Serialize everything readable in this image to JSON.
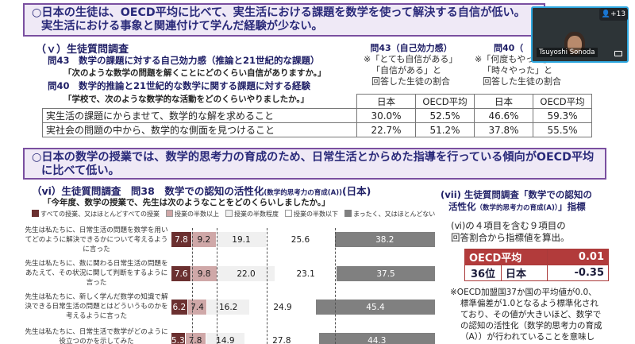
{
  "box1": {
    "line1": "○日本の生徒は、OECD平均に比べて、実生活における課題を数学を使って解決する自信が低い。",
    "line2": "実生活における事象と関連付けて学んだ経験が少ない。"
  },
  "section_v": {
    "heading": "（ｖ）生徒質問調査",
    "q43": "問43　数学の課題に対する自己効力感（推論と21世紀的な課題）",
    "q43_prompt": "「次のような数学の問題を解くことにどのくらい自信がありますか。」",
    "q40": "問40　数学的推論と21世紀的な数学に関する課題に対する経験",
    "q40_prompt": "「学校で、次のような数学的な活動をどのくらいやりましたか。」",
    "col43_title": "問43（自己効力感）",
    "col43_note1": "※「とても自信がある」",
    "col43_note2": "「自信がある」と",
    "col43_note3": "回答した生徒の割合",
    "col40_title": "問40（",
    "col40_note1": "※「何度もやった」",
    "col40_note2": "「時々やった」と",
    "col40_note3": "回答した生徒の割合",
    "hdr_japan": "日本",
    "hdr_oecd": "OECD平均",
    "rows": [
      {
        "item": "実生活の課題にからませて、数学的な解を求めること",
        "j43": "30.0%",
        "o43": "52.5%",
        "j40": "46.6%",
        "o40": "59.3%"
      },
      {
        "item": "実社会の問題の中から、数学的な側面を見つけること",
        "j43": "22.7%",
        "o43": "51.2%",
        "j40": "37.8%",
        "o40": "55.5%"
      }
    ]
  },
  "box2": {
    "line1": "○日本の数学の授業では、数学的思考力の育成のため、日常生活とからめた指導を行っている傾向がOECD平均",
    "line2": "に比べて低い。"
  },
  "section_vi": {
    "heading": "（vi）生徒質問調査　問38　数学での認知の活性化",
    "heading_small": "(数学的思考力の育成(A))",
    "heading_tail": "(日本)",
    "prompt": "「今年度、数学の授業で、先生は次のようなことをどのくらいしましたか。」",
    "legend": [
      {
        "label": "すべての授業、又はほとんどすべての授業",
        "color": "#6b3030"
      },
      {
        "label": "授業の半数以上",
        "color": "#cfa8a8"
      },
      {
        "label": "授業の半数程度",
        "color": "#f0f0f0"
      },
      {
        "label": "授業の半数以下",
        "color": "#ffffff"
      },
      {
        "label": "まったく、又はほとんどない",
        "color": "#808080"
      }
    ],
    "items": [
      {
        "label": "先生は私たちに、日常生活の問題を数学を用いてどのように解決できるかについて考えるように言った",
        "values": [
          7.8,
          9.2,
          19.1,
          25.6,
          38.2
        ]
      },
      {
        "label": "先生は私たちに、数に関わる日常生活の問題をあたえて、その状況に関して判断をするように言った",
        "values": [
          7.6,
          9.8,
          22.0,
          23.1,
          37.5
        ]
      },
      {
        "label": "先生は私たちに、新しく学んだ数学の知識で解決できる日常生活の問題とはどういうものかを考えるように言った",
        "values": [
          6.2,
          7.4,
          16.2,
          24.9,
          45.4
        ]
      },
      {
        "label": "先生は私たちに、日常生活で数学がどのように役立つのかを示してみた",
        "values": [
          5.3,
          7.8,
          14.9,
          27.8,
          44.3
        ]
      }
    ]
  },
  "section_vii": {
    "heading1": "(vii) 生徒質問調査「数学での認知の",
    "heading2a": "活性化",
    "heading2b": "（数学的思考力の育成(A)）",
    "heading2c": "」指標",
    "desc1": "(ⅵ)の４項目を含む９項目の",
    "desc2": "回答割合から指標値を算出。",
    "oecd_label": "OECD平均",
    "oecd_value": "0.01",
    "rank": "36位",
    "japan_label": "日本",
    "japan_value": "-0.35",
    "note1": "※OECD加盟国37か国の平均値が0.0、",
    "note2": "標準偏差が1.0となるよう標準化され",
    "note3": "ており、その値が大きいほど、数学で",
    "note4": "の認知の活性化（数学的思考力の育成",
    "note5": "（A））が行われていることを意味し"
  },
  "video": {
    "name": "Tsuyoshi Sonoda",
    "participants": "+13"
  }
}
